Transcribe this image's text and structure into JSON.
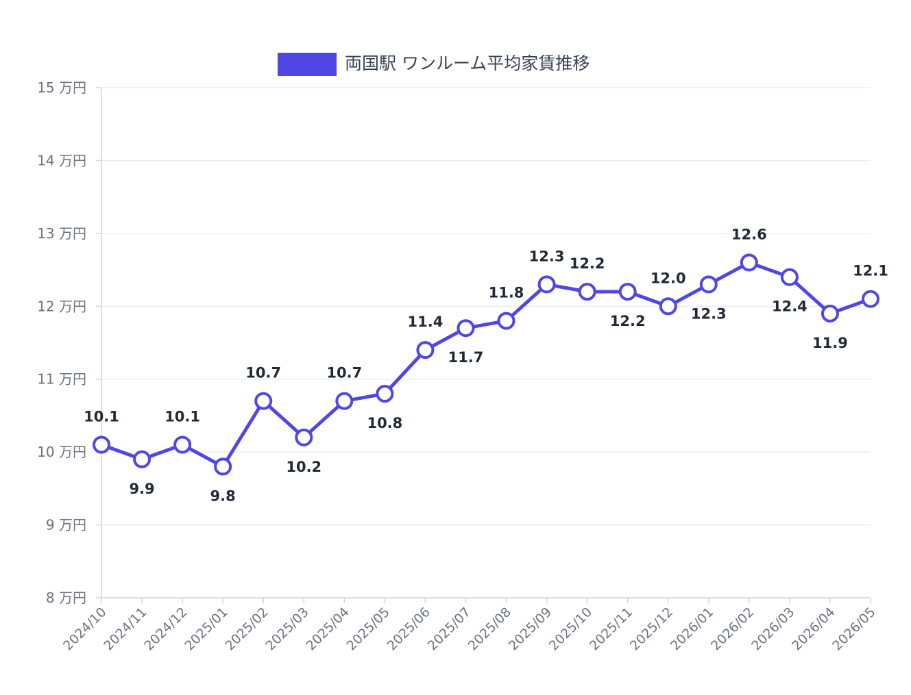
{
  "chart_data": {
    "type": "line",
    "title": "",
    "xlabel": "",
    "ylabel": "",
    "y_unit": "万円",
    "ylim": [
      8,
      15
    ],
    "y_ticks": [
      8,
      9,
      10,
      11,
      12,
      13,
      14,
      15
    ],
    "grid": true,
    "legend_position": "top",
    "categories": [
      "2024/10",
      "2024/11",
      "2024/12",
      "2025/01",
      "2025/02",
      "2025/03",
      "2025/04",
      "2025/05",
      "2025/06",
      "2025/07",
      "2025/08",
      "2025/09",
      "2025/10",
      "2025/11",
      "2025/12",
      "2026/01",
      "2026/02",
      "2026/03",
      "2026/04",
      "2026/05"
    ],
    "series": [
      {
        "name": "両国駅 ワンルーム平均家賃推移",
        "color": "#4f46e5",
        "values": [
          10.1,
          9.9,
          10.1,
          9.8,
          10.7,
          10.2,
          10.7,
          10.8,
          11.4,
          11.7,
          11.8,
          12.3,
          12.2,
          12.2,
          12.0,
          12.3,
          12.6,
          12.4,
          11.9,
          12.1
        ],
        "data_labels": [
          "10.1",
          "9.9",
          "10.1",
          "9.8",
          "10.7",
          "10.2",
          "10.7",
          "10.8",
          "11.4",
          "11.7",
          "11.8",
          "12.3",
          "12.2",
          "12.2",
          "12.0",
          "12.3",
          "12.6",
          "12.4",
          "11.9",
          "12.1"
        ],
        "label_positions": [
          "above",
          "below",
          "above",
          "below",
          "above",
          "below",
          "above",
          "below",
          "above",
          "below",
          "above",
          "above",
          "above",
          "below",
          "above",
          "below",
          "above",
          "below",
          "below",
          "above"
        ]
      }
    ]
  }
}
